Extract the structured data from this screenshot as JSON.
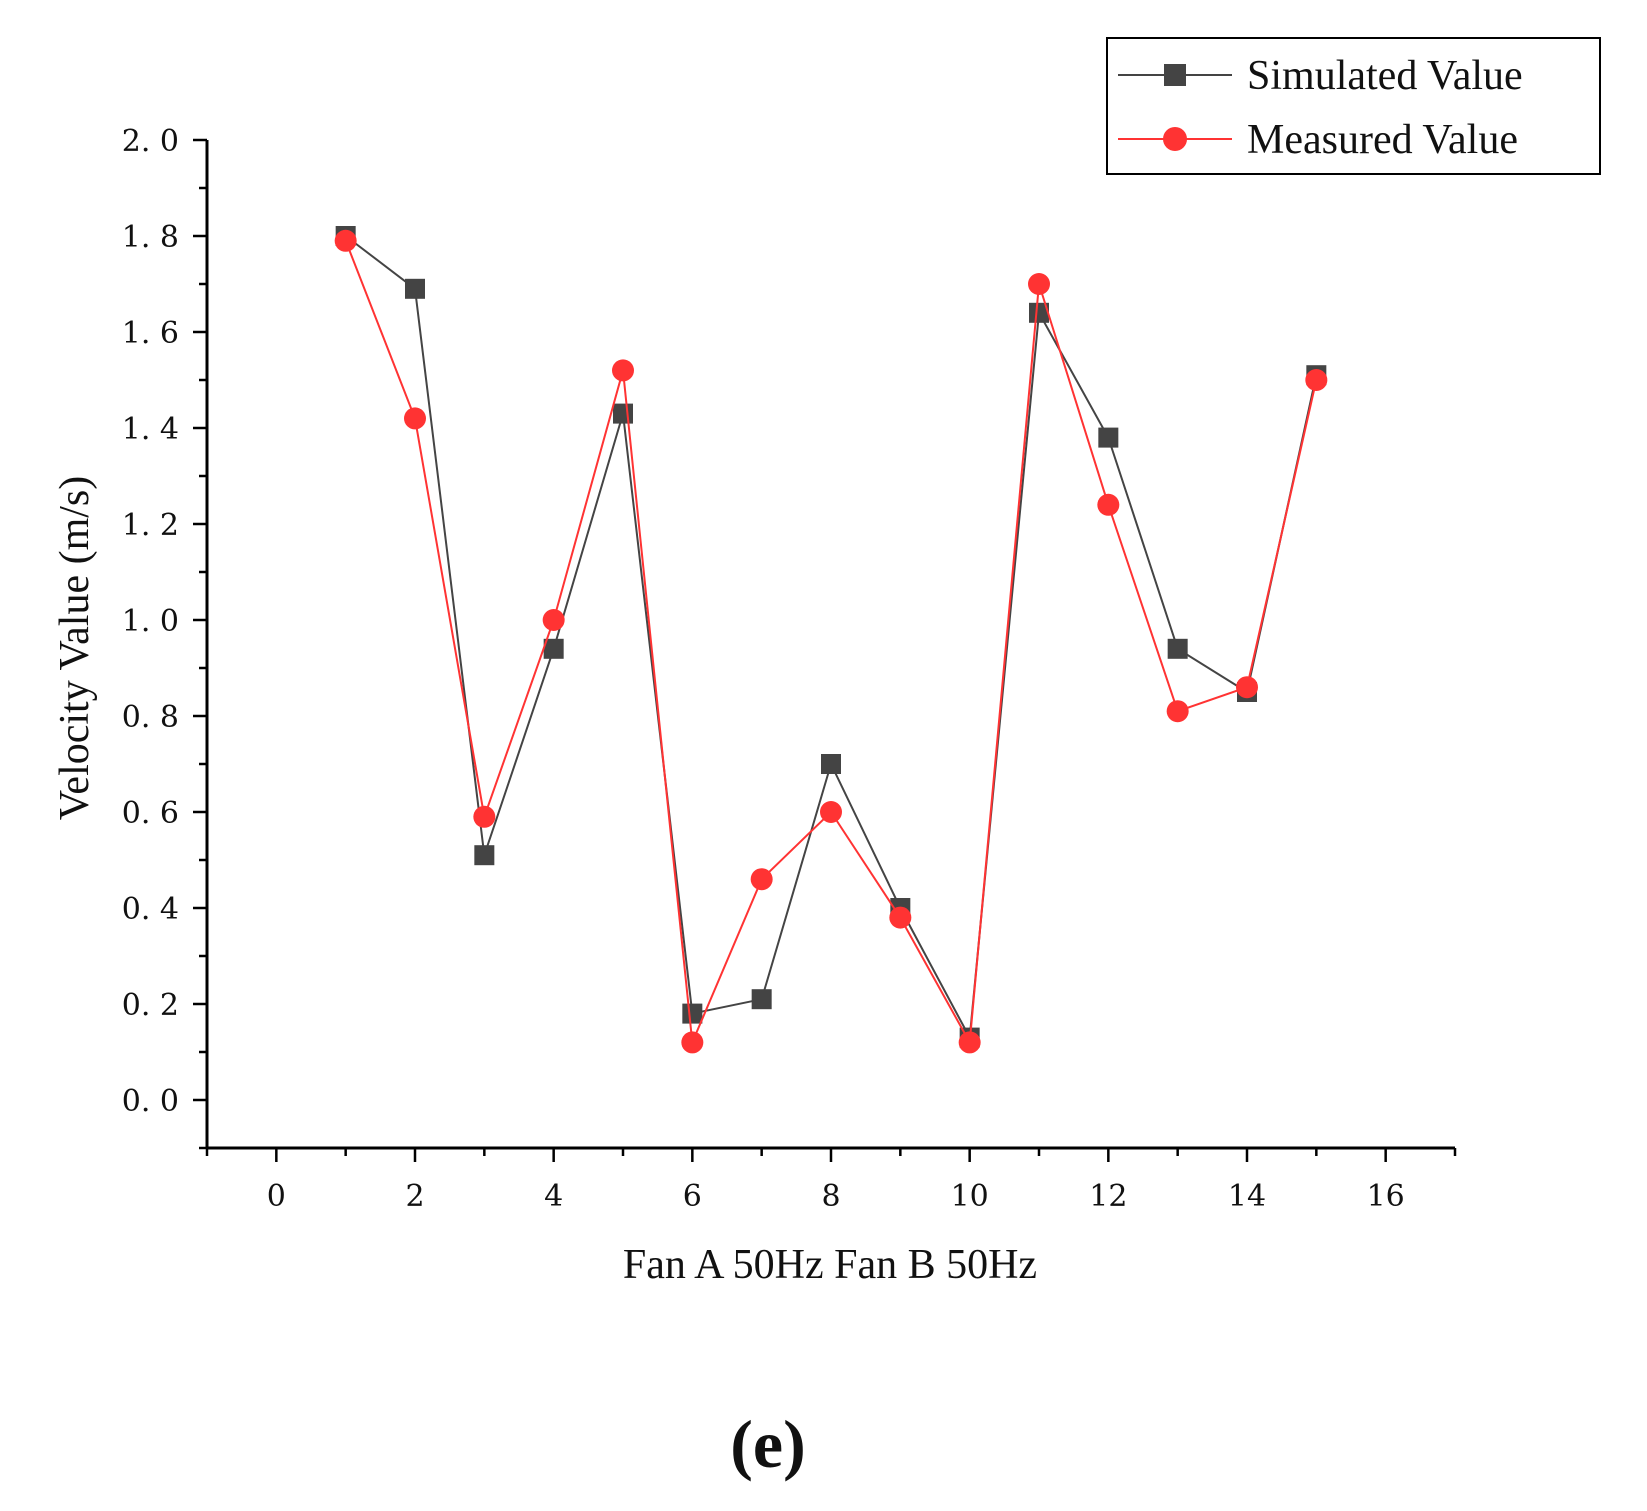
{
  "chart_data": {
    "type": "line",
    "title": "",
    "xlabel": "Fan A 50Hz Fan B 50Hz",
    "ylabel": "Velocity Value (m/s)",
    "xlim": [
      -1,
      17
    ],
    "ylim": [
      -0.1,
      2.0
    ],
    "x_ticks": [
      "0",
      "2",
      "4",
      "6",
      "8",
      "10",
      "12",
      "14",
      "16"
    ],
    "y_ticks": [
      "0. 0",
      "0. 2",
      "0. 4",
      "0. 6",
      "0. 8",
      "1. 0",
      "1. 2",
      "1. 4",
      "1. 6",
      "1. 8",
      "2. 0"
    ],
    "grid": false,
    "legend_position": "top-right",
    "series": [
      {
        "name": "Simulated Value",
        "color": "#444444",
        "marker": "square",
        "x": [
          1,
          2,
          3,
          4,
          5,
          6,
          7,
          8,
          9,
          10,
          11,
          12,
          13,
          14,
          15
        ],
        "values": [
          1.8,
          1.69,
          0.51,
          0.94,
          1.43,
          0.18,
          0.21,
          0.7,
          0.4,
          0.13,
          1.64,
          1.38,
          0.94,
          0.85,
          1.51
        ]
      },
      {
        "name": "Measured Value",
        "color": "#ff3333",
        "marker": "circle",
        "x": [
          1,
          2,
          3,
          4,
          5,
          6,
          7,
          8,
          9,
          10,
          11,
          12,
          13,
          14,
          15
        ],
        "values": [
          1.79,
          1.42,
          0.59,
          1.0,
          1.52,
          0.12,
          0.46,
          0.6,
          0.38,
          0.12,
          1.7,
          1.24,
          0.81,
          0.86,
          1.5
        ]
      }
    ]
  },
  "panel_label": "(e)"
}
